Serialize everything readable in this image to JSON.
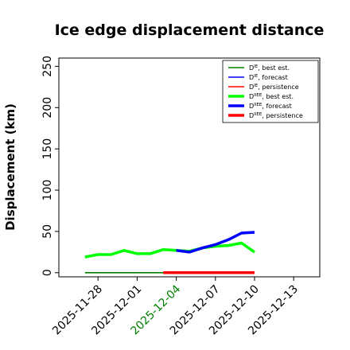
{
  "chart_data": {
    "type": "line",
    "title": "Ice edge displacement distance",
    "ylabel": "Displacement (km)",
    "xlabel": "",
    "ylim": [
      0,
      260
    ],
    "xlim": [
      "2025-11-25",
      "2025-12-15"
    ],
    "yticks": [
      0,
      50,
      100,
      150,
      200,
      250
    ],
    "xticks": [
      {
        "date": "2025-11-28",
        "label": "2025-11-28",
        "color": "#000000"
      },
      {
        "date": "2025-12-01",
        "label": "2025-12-01",
        "color": "#000000"
      },
      {
        "date": "2025-12-04",
        "label": "2025-12-04",
        "color": "#008000"
      },
      {
        "date": "2025-12-07",
        "label": "2025-12-07",
        "color": "#000000"
      },
      {
        "date": "2025-12-10",
        "label": "2025-12-10",
        "color": "#000000"
      },
      {
        "date": "2025-12-13",
        "label": "2025-12-13",
        "color": "#000000"
      }
    ],
    "grid": false,
    "legend_position": "top-right",
    "series": [
      {
        "name_base": "D",
        "name_sup": "IE",
        "name_suffix": ", best est.",
        "color": "#008000",
        "width": 1.6,
        "x": [
          "2025-11-27",
          "2025-12-10"
        ],
        "y": [
          0,
          0
        ]
      },
      {
        "name_base": "D",
        "name_sup": "IE",
        "name_suffix": ", forecast",
        "color": "#0000ff",
        "width": 1.6,
        "x": [],
        "y": []
      },
      {
        "name_base": "D",
        "name_sup": "IE",
        "name_suffix": ", persistence",
        "color": "#ff0000",
        "width": 1.6,
        "x": [],
        "y": []
      },
      {
        "name_base": "D",
        "name_sup": "IIEE",
        "name_suffix": ", best est.",
        "color": "#00ff00",
        "width": 3.5,
        "x": [
          "2025-11-27",
          "2025-11-28",
          "2025-11-29",
          "2025-11-30",
          "2025-12-01",
          "2025-12-02",
          "2025-12-03",
          "2025-12-04",
          "2025-12-05",
          "2025-12-06",
          "2025-12-07",
          "2025-12-08",
          "2025-12-09",
          "2025-12-10"
        ],
        "y": [
          19,
          22,
          22,
          27,
          23,
          23,
          28,
          27,
          26,
          30,
          32,
          33,
          36,
          25
        ]
      },
      {
        "name_base": "D",
        "name_sup": "IIEE",
        "name_suffix": ", forecast",
        "color": "#0000ff",
        "width": 3.5,
        "x": [
          "2025-12-04",
          "2025-12-05",
          "2025-12-06",
          "2025-12-07",
          "2025-12-08",
          "2025-12-09",
          "2025-12-10"
        ],
        "y": [
          27,
          25,
          30,
          34,
          40,
          48,
          49
        ]
      },
      {
        "name_base": "D",
        "name_sup": "IIEE",
        "name_suffix": ", persistence",
        "color": "#ff0000",
        "width": 3.5,
        "x": [
          "2025-12-03",
          "2025-12-10"
        ],
        "y": [
          0,
          0
        ]
      }
    ]
  }
}
